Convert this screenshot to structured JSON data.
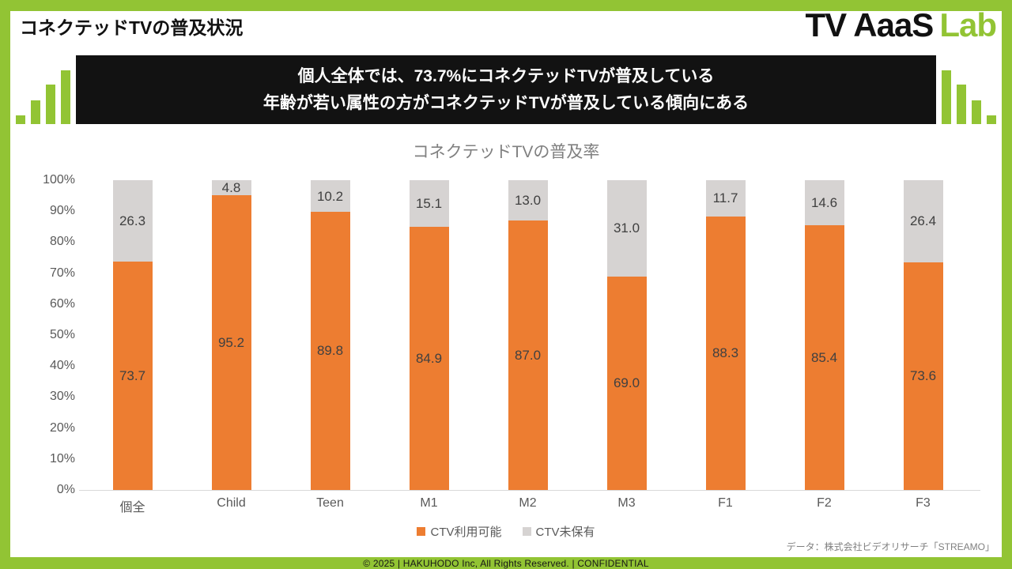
{
  "page": {
    "title": "コネクテッドTVの普及状況",
    "logo_black": "TV AaaS",
    "logo_green": "Lab",
    "banner_line1": "個人全体では、73.7%にコネクテッドTVが普及している",
    "banner_line2": "年齢が若い属性の方がコネクテッドTVが普及している傾向にある",
    "source_note": "データ：株式会社ビデオリサーチ「STREAMO」",
    "footer": "© 2025 | HAKUHODO Inc, All Rights Reserved. | CONFIDENTIAL",
    "icons": {
      "left_decoration": "equalizer-bars-ascending-icon",
      "right_decoration": "equalizer-bars-descending-icon"
    }
  },
  "colors": {
    "brand_green": "#92C434",
    "banner_black": "#121212",
    "series_orange": "#ED7D31",
    "series_gray": "#D6D3D2",
    "axis_line": "#D9D9D9",
    "axis_text": "#595959",
    "label_text": "#404040"
  },
  "chart_data": {
    "type": "bar",
    "stacked": true,
    "title": "コネクテッドTVの普及率",
    "categories": [
      "個全",
      "Child",
      "Teen",
      "M1",
      "M2",
      "M3",
      "F1",
      "F2",
      "F3"
    ],
    "series": [
      {
        "name": "CTV利用可能",
        "color": "#ED7D31",
        "values": [
          73.7,
          95.2,
          89.8,
          84.9,
          87.0,
          69.0,
          88.3,
          85.4,
          73.6
        ]
      },
      {
        "name": "CTV未保有",
        "color": "#D6D3D2",
        "values": [
          26.3,
          4.8,
          10.2,
          15.1,
          13.0,
          31.0,
          11.7,
          14.6,
          26.4
        ]
      }
    ],
    "xlabel": "",
    "ylabel": "",
    "ylim": [
      0,
      100
    ],
    "ytick_step": 10,
    "ytick_suffix": "%",
    "grid": false,
    "legend_position": "bottom",
    "value_label_decimals": 1
  }
}
